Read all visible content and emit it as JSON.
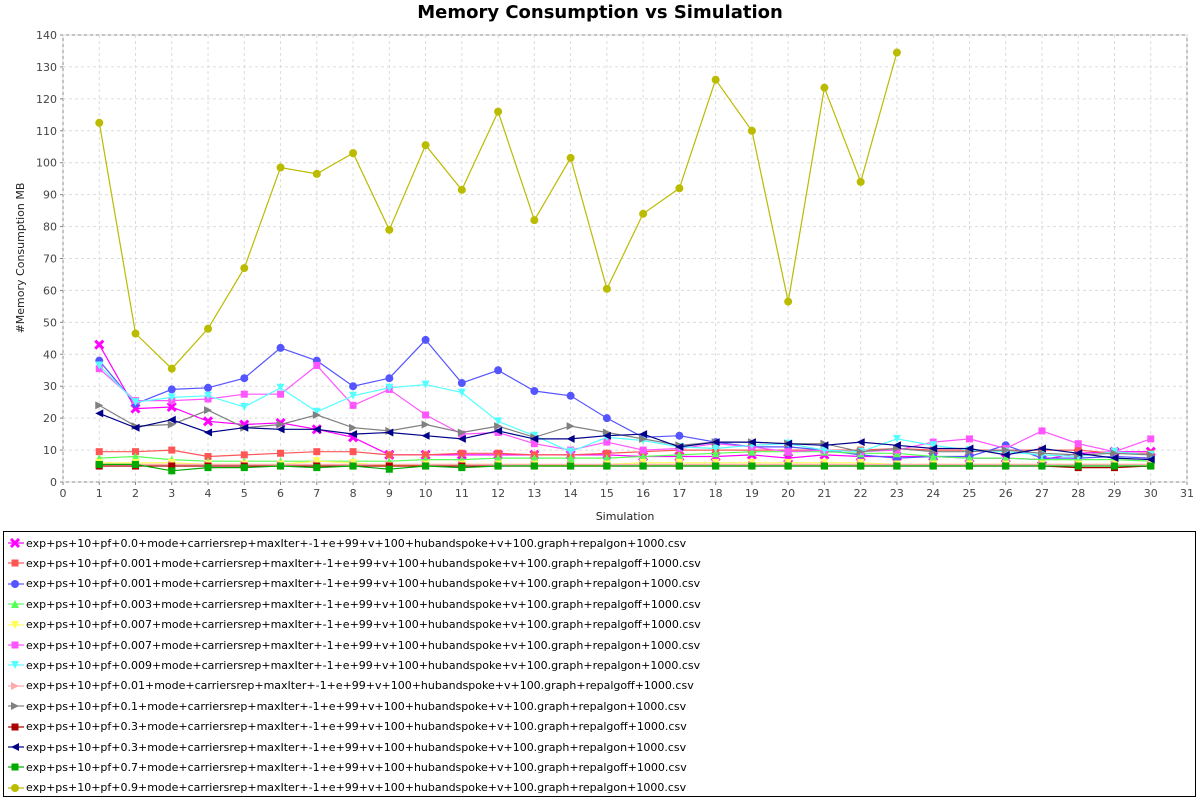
{
  "chart_data": {
    "type": "line",
    "title": "Memory Consumption vs Simulation",
    "xlabel": "Simulation",
    "ylabel": "#Memory Consumption MB",
    "xlim": [
      0,
      31
    ],
    "ylim": [
      0,
      140
    ],
    "xticks": [
      0,
      1,
      2,
      3,
      4,
      5,
      6,
      7,
      8,
      9,
      10,
      11,
      12,
      13,
      14,
      15,
      16,
      17,
      18,
      19,
      20,
      21,
      22,
      23,
      24,
      25,
      26,
      27,
      28,
      29,
      30,
      31
    ],
    "yticks": [
      0,
      10,
      20,
      30,
      40,
      50,
      60,
      70,
      80,
      90,
      100,
      110,
      120,
      130,
      140
    ],
    "grid": true,
    "legend_position": "bottom",
    "x": [
      1,
      2,
      3,
      4,
      5,
      6,
      7,
      8,
      9,
      10,
      11,
      12,
      13,
      14,
      15,
      16,
      17,
      18,
      19,
      20,
      21,
      22,
      23,
      24,
      25,
      26,
      27,
      28,
      29,
      30
    ],
    "series": [
      {
        "name": "exp+ps+10+pf+0.0+mode+carriersrep+maxIter+-1+e+99+v+100+hubandspoke+v+100.graph+repalgon+1000.csv",
        "color": "#ff00ff",
        "marker": "x",
        "values": [
          43,
          23,
          23.5,
          19,
          18,
          18.5,
          16.5,
          14,
          8.5,
          8.5,
          8.5,
          8.5,
          8.5,
          8.5,
          8.5,
          8,
          8,
          8,
          8.5,
          7.5,
          8.5,
          8,
          8,
          8,
          7.5,
          7.5,
          7,
          9,
          9.5,
          9.5
        ]
      },
      {
        "name": "exp+ps+10+pf+0.001+mode+carriersrep+maxIter+-1+e+99+v+100+hubandspoke+v+100.graph+repalgoff+1000.csv",
        "color": "#ff5555",
        "marker": "square",
        "values": [
          9.5,
          9.5,
          10,
          8,
          8.5,
          9,
          9.5,
          9.5,
          8.5,
          8.5,
          9,
          9,
          8.5,
          8.5,
          9,
          9.5,
          10,
          10,
          10,
          10,
          10,
          10,
          10.5,
          10,
          10,
          10,
          10,
          10,
          9,
          9
        ]
      },
      {
        "name": "exp+ps+10+pf+0.001+mode+carriersrep+maxIter+-1+e+99+v+100+hubandspoke+v+100.graph+repalgon+1000.csv",
        "color": "#5555ff",
        "marker": "circle",
        "values": [
          38,
          24.5,
          29,
          29.5,
          32.5,
          42,
          38,
          30,
          32.5,
          44.5,
          31,
          35,
          28.5,
          27,
          20,
          14,
          14.5,
          12.5,
          11,
          11,
          10,
          8.5,
          7.5,
          8,
          8,
          11.5,
          7.5,
          7.5,
          8,
          7.5
        ]
      },
      {
        "name": "exp+ps+10+pf+0.003+mode+carriersrep+maxIter+-1+e+99+v+100+hubandspoke+v+100.graph+repalgoff+1000.csv",
        "color": "#55ff55",
        "marker": "triangle-up",
        "values": [
          7.5,
          8,
          7,
          6.5,
          6.5,
          6.5,
          6.5,
          6.5,
          6.5,
          7,
          7,
          7.5,
          7.5,
          7.5,
          7.5,
          8,
          8.5,
          9,
          9.5,
          9.5,
          9.5,
          9,
          9,
          8,
          7.5,
          7.5,
          7,
          7,
          7,
          6.5
        ]
      },
      {
        "name": "exp+ps+10+pf+0.007+mode+carriersrep+maxIter+-1+e+99+v+100+hubandspoke+v+100.graph+repalgoff+1000.csv",
        "color": "#ffff55",
        "marker": "triangle-down",
        "values": [
          6,
          6,
          6,
          5.5,
          5.5,
          5.5,
          6.5,
          6,
          5,
          5.5,
          5.5,
          5.5,
          5.5,
          5,
          5.5,
          6,
          6,
          6,
          6,
          6,
          6,
          6,
          5.5,
          5.5,
          5.5,
          5.5,
          5.5,
          5.5,
          5.5,
          5.5
        ]
      },
      {
        "name": "exp+ps+10+pf+0.007+mode+carriersrep+maxIter+-1+e+99+v+100+hubandspoke+v+100.graph+repalgon+1000.csv",
        "color": "#ff55ff",
        "marker": "square",
        "values": [
          35.5,
          25.5,
          25.5,
          26,
          27.5,
          27.5,
          36.5,
          24,
          29,
          21,
          15,
          15.5,
          12,
          10,
          12.5,
          10,
          10.5,
          12,
          11,
          9.5,
          10,
          9.5,
          10,
          12.5,
          13.5,
          10.5,
          16,
          12,
          9.5,
          13.5
        ]
      },
      {
        "name": "exp+ps+10+pf+0.009+mode+carriersrep+maxIter+-1+e+99+v+100+hubandspoke+v+100.graph+repalgon+1000.csv",
        "color": "#55ffff",
        "marker": "triangle-down",
        "values": [
          36.5,
          25,
          26.5,
          27,
          23.5,
          29.5,
          22,
          27,
          29.5,
          30.5,
          28,
          19,
          14.5,
          9.5,
          14,
          13,
          11,
          10.5,
          11.5,
          12,
          10,
          9.5,
          13.5,
          11.5,
          10,
          9.5,
          8.5,
          8,
          9.5,
          8.5
        ]
      },
      {
        "name": "exp+ps+10+pf+0.01+mode+carriersrep+maxIter+-1+e+99+v+100+hubandspoke+v+100.graph+repalgoff+1000.csv",
        "color": "#ffaaaa",
        "marker": "triangle-right",
        "values": [
          5.5,
          5.5,
          5.5,
          5.5,
          5.5,
          5.5,
          5.5,
          5.5,
          5.5,
          5.5,
          5.5,
          5.5,
          5.5,
          5.5,
          5.5,
          5.5,
          5.5,
          5.5,
          5.5,
          5.5,
          5.5,
          5.5,
          5.5,
          5.5,
          5.5,
          5.5,
          5.5,
          5.5,
          5.5,
          5.5
        ]
      },
      {
        "name": "exp+ps+10+pf+0.1+mode+carriersrep+maxIter+-1+e+99+v+100+hubandspoke+v+100.graph+repalgon+1000.csv",
        "color": "#808080",
        "marker": "triangle-right",
        "values": [
          24,
          17.5,
          18,
          22.5,
          17,
          18,
          21,
          17,
          16,
          18,
          15.5,
          17.5,
          14,
          17.5,
          15.5,
          13.5,
          11.5,
          12.5,
          12.5,
          12,
          12,
          9.5,
          10.5,
          9.5,
          9.5,
          10,
          9,
          8.5,
          9,
          8.5
        ]
      },
      {
        "name": "exp+ps+10+pf+0.3+mode+carriersrep+maxIter+-1+e+99+v+100+hubandspoke+v+100.graph+repalgoff+1000.csv",
        "color": "#aa0000",
        "marker": "square",
        "values": [
          5,
          5,
          5,
          5,
          5,
          5,
          5,
          5,
          5,
          5,
          5,
          5,
          5,
          5,
          5,
          5,
          5,
          5,
          5,
          5,
          5,
          5,
          5,
          5,
          5,
          5,
          5,
          4.5,
          4.5,
          5
        ]
      },
      {
        "name": "exp+ps+10+pf+0.3+mode+carriersrep+maxIter+-1+e+99+v+100+hubandspoke+v+100.graph+repalgon+1000.csv",
        "color": "#000088",
        "marker": "triangle-left",
        "values": [
          21.5,
          17,
          19.5,
          15.5,
          17,
          16.5,
          16.5,
          15,
          15.5,
          14.5,
          13.5,
          16,
          13.5,
          13.5,
          14.5,
          15,
          11,
          12.5,
          12.5,
          12,
          11.5,
          12.5,
          11.5,
          10.5,
          10.5,
          8.5,
          10.5,
          9,
          7.5,
          7
        ]
      },
      {
        "name": "exp+ps+10+pf+0.7+mode+carriersrep+maxIter+-1+e+99+v+100+hubandspoke+v+100.graph+repalgoff+1000.csv",
        "color": "#00aa00",
        "marker": "square",
        "values": [
          5.5,
          5.5,
          3.5,
          4.5,
          4.5,
          5,
          4.5,
          5,
          4,
          5,
          4.5,
          5,
          5,
          5,
          5,
          5,
          5,
          5,
          5,
          5,
          5,
          5,
          5,
          5,
          5,
          5,
          5,
          5,
          5,
          5
        ]
      },
      {
        "name": "exp+ps+10+pf+0.9+mode+carriersrep+maxIter+-1+e+99+v+100+hubandspoke+v+100.graph+repalgon+1000.csv",
        "color": "#bbbb00",
        "marker": "circle",
        "values": [
          112.5,
          46.5,
          35.5,
          48,
          67,
          98.5,
          96.5,
          103,
          79,
          105.5,
          91.5,
          116,
          82,
          101.5,
          60.5,
          84,
          92,
          126,
          110,
          56.5,
          123.5,
          94,
          134.5,
          null,
          null,
          null,
          null,
          null,
          null,
          null
        ]
      }
    ]
  }
}
